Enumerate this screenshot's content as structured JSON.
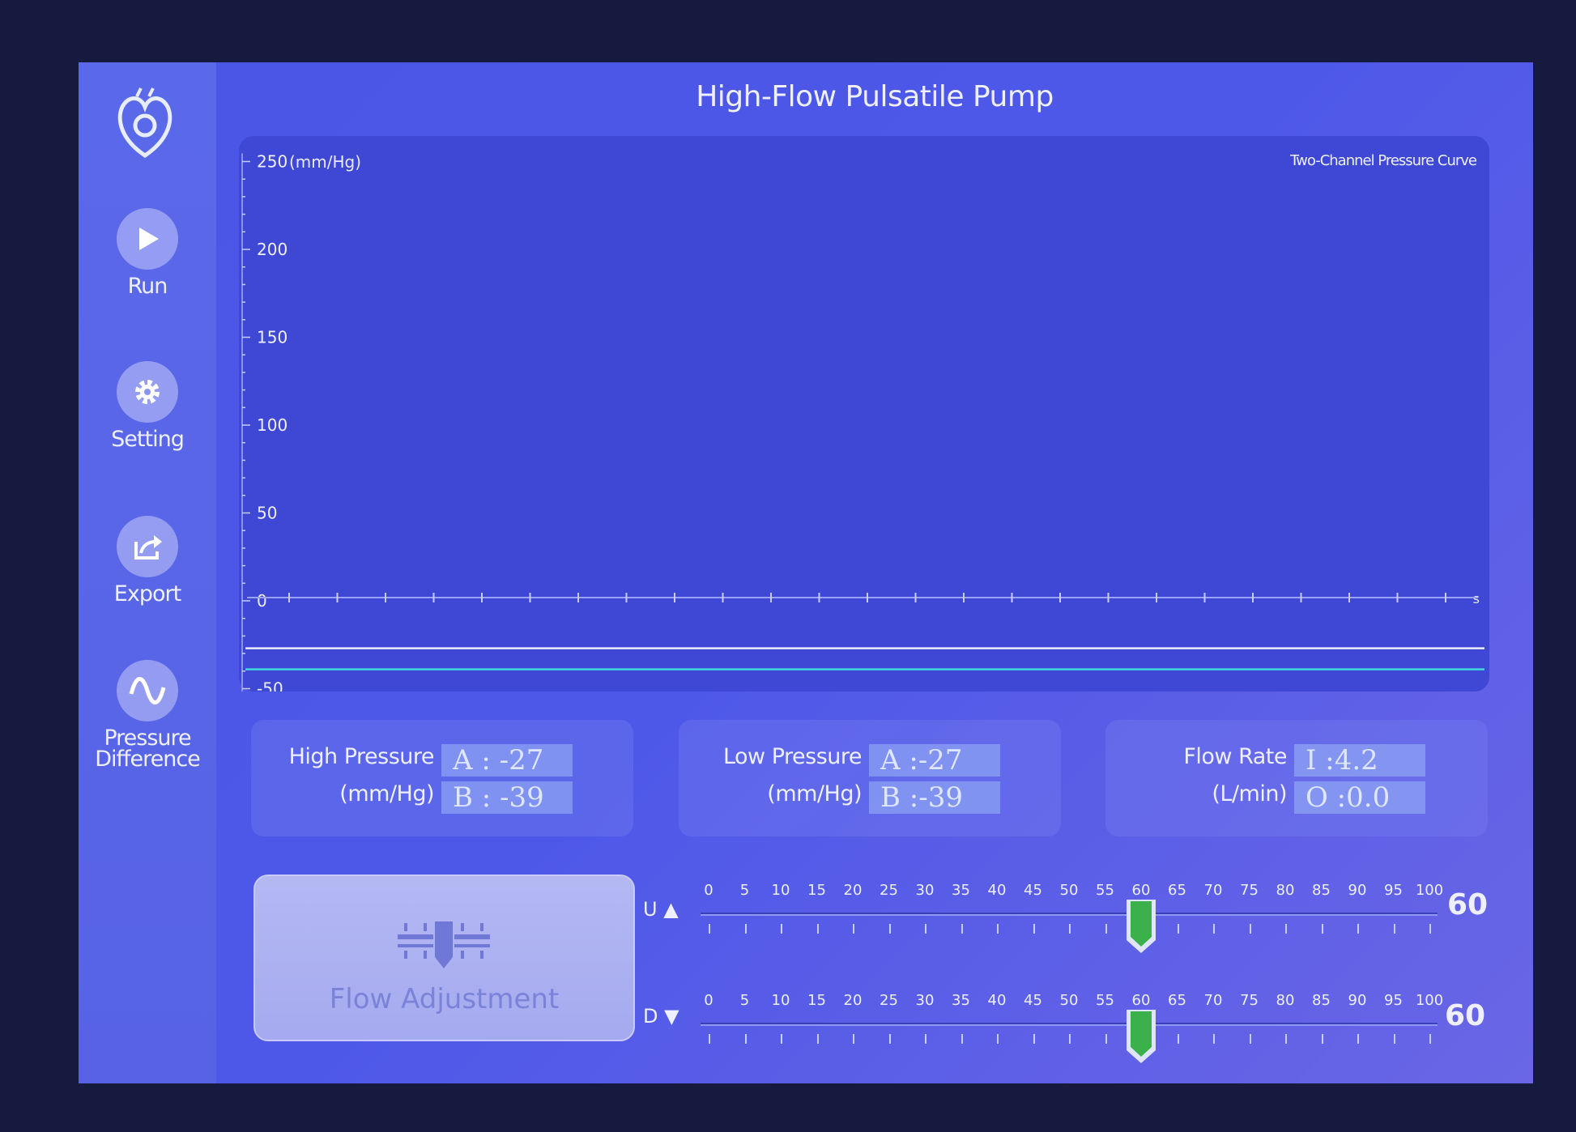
{
  "title": "High-Flow Pulsatile Pump",
  "sidebar": {
    "items": [
      {
        "label": "Run",
        "icon": "play-icon"
      },
      {
        "label": "Setting",
        "icon": "gear-icon"
      },
      {
        "label": "Export",
        "icon": "export-icon"
      },
      {
        "label": "Pressure Difference",
        "icon": "sine-wave-icon"
      }
    ],
    "logo": "heart-logo-icon"
  },
  "chart": {
    "title": "Two-Channel Pressure Curve",
    "y_unit": "(mm/Hg)",
    "x_unit": "s",
    "y_ticks": [
      "250",
      "200",
      "150",
      "100",
      "50",
      "0",
      "-50"
    ],
    "series_colors": {
      "A": "#e8ecff",
      "B": "#40d8e0"
    },
    "series_levels_mmHg": {
      "A": -27,
      "B": -39
    }
  },
  "readouts": {
    "high": {
      "label": "High Pressure",
      "unit": "(mm/Hg)",
      "a": "A : -27",
      "b": "B : -39"
    },
    "low": {
      "label": "Low Pressure",
      "unit": "(mm/Hg)",
      "a": "A :-27",
      "b": "B :-39"
    },
    "flow": {
      "label": "Flow Rate",
      "unit": "(L/min)",
      "i": "I :4.2",
      "o": "O :0.0"
    }
  },
  "flow_adjustment": {
    "label": "Flow Adjustment"
  },
  "sliders": {
    "scale": [
      "0",
      "5",
      "10",
      "15",
      "20",
      "25",
      "30",
      "35",
      "40",
      "45",
      "50",
      "55",
      "60",
      "65",
      "70",
      "75",
      "80",
      "85",
      "90",
      "95",
      "100"
    ],
    "up": {
      "label": "U ▲",
      "value": 60,
      "value_text": "60"
    },
    "down": {
      "label": "D ▼",
      "value": 60,
      "value_text": "60"
    },
    "thumb_color": "#3cb04a"
  }
}
